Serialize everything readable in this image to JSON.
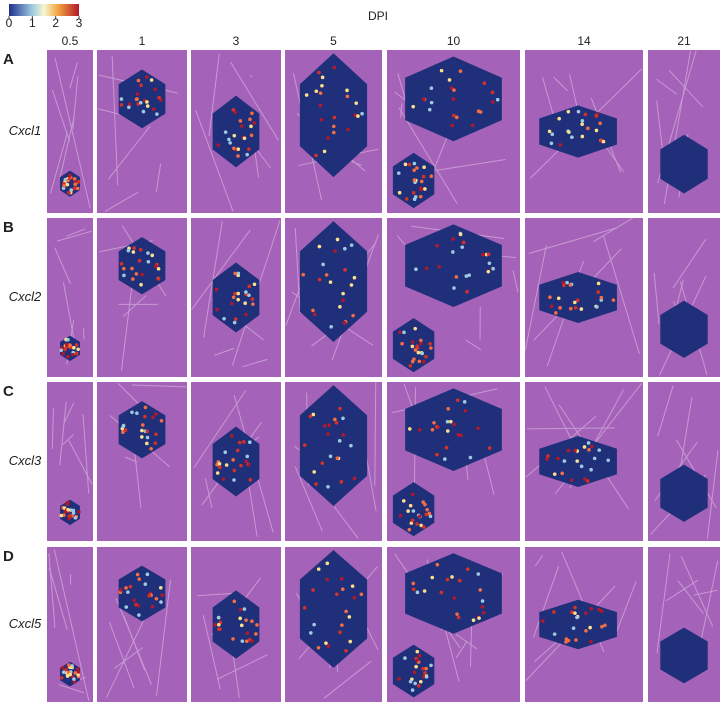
{
  "colorbar": {
    "ticks": [
      0,
      1,
      2,
      3
    ]
  },
  "header": {
    "title": "DPI"
  },
  "columns": [
    "0.5",
    "1",
    "3",
    "5",
    "10",
    "14",
    "21"
  ],
  "rows": [
    {
      "letter": "A",
      "gene": "Cxcl1"
    },
    {
      "letter": "B",
      "gene": "Cxcl2"
    },
    {
      "letter": "C",
      "gene": "Cxcl3"
    },
    {
      "letter": "D",
      "gene": "Cxcl5"
    }
  ]
}
